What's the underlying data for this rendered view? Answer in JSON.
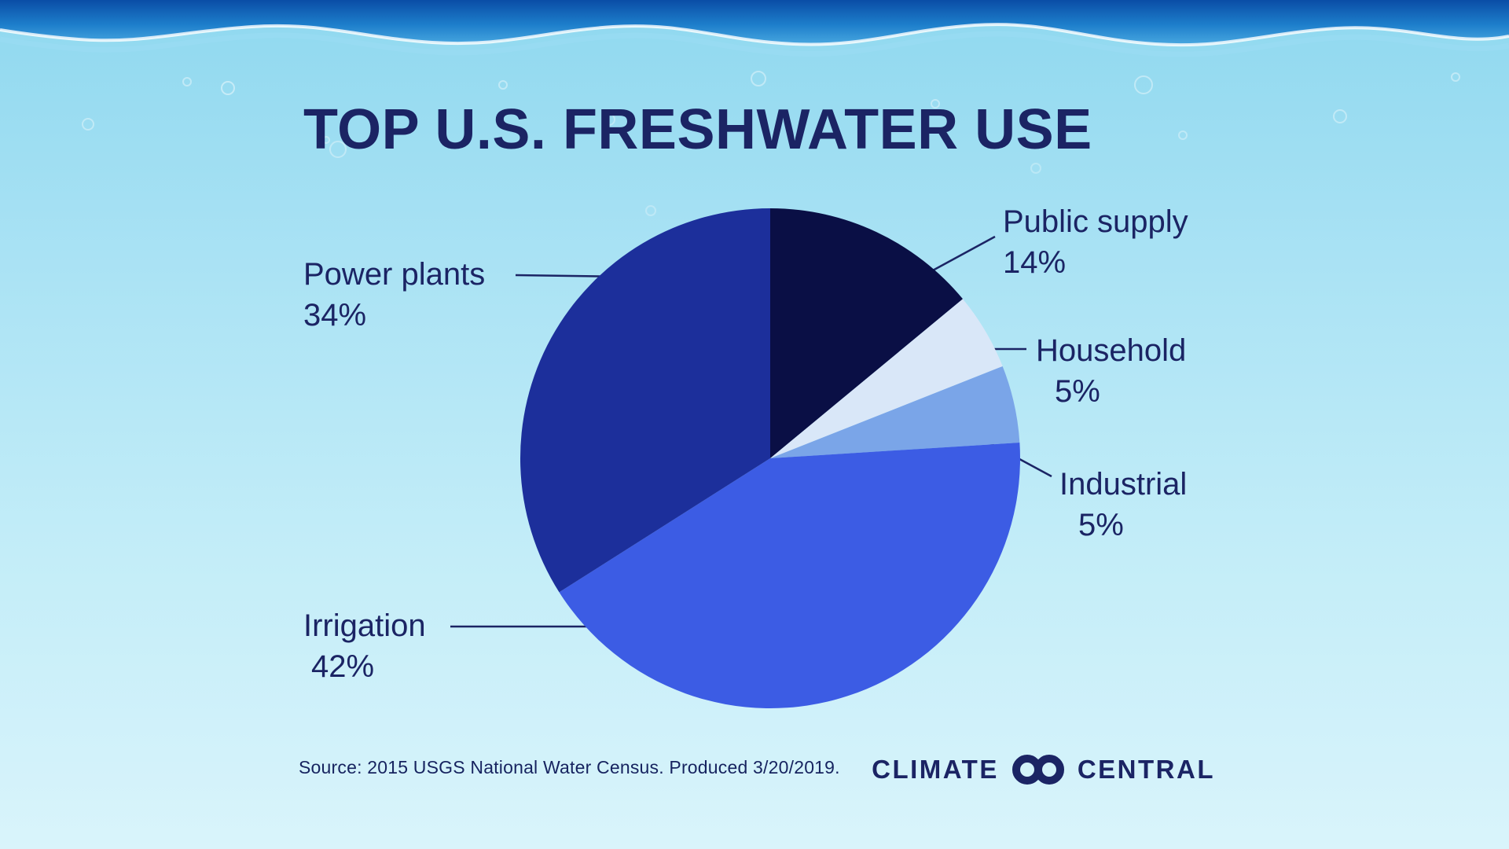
{
  "page": {
    "title": "TOP U.S. FRESHWATER USE",
    "source": "Source: 2015 USGS National Water Census. Produced 3/20/2019."
  },
  "logo": {
    "word_left": "CLIMATE",
    "word_right": "CENTRAL"
  },
  "chart_data": {
    "type": "pie",
    "title": "TOP U.S. FRESHWATER USE",
    "start_angle_deg": 0,
    "direction": "clockwise",
    "legend_position": "callout-labels",
    "slices": [
      {
        "label": "Public supply",
        "value": 14,
        "pct_label": "14%",
        "color": "#0a0f45"
      },
      {
        "label": "Household",
        "value": 5,
        "pct_label": "5%",
        "color": "#d9e7f8"
      },
      {
        "label": "Industrial",
        "value": 5,
        "pct_label": "5%",
        "color": "#7aa5e8"
      },
      {
        "label": "Irrigation",
        "value": 42,
        "pct_label": "42%",
        "color": "#3c5ce4"
      },
      {
        "label": "Power plants",
        "value": 34,
        "pct_label": "34%",
        "color": "#1c2f9b"
      }
    ]
  },
  "colors": {
    "text": "#1b2464",
    "background_top": "#8fd8ef",
    "background_bottom": "#d9f4fb",
    "wave_dark": "#0a4da6",
    "wave_mid": "#1d7ecb",
    "wave_light": "#49a8e0",
    "leader_line": "#1b2464"
  }
}
